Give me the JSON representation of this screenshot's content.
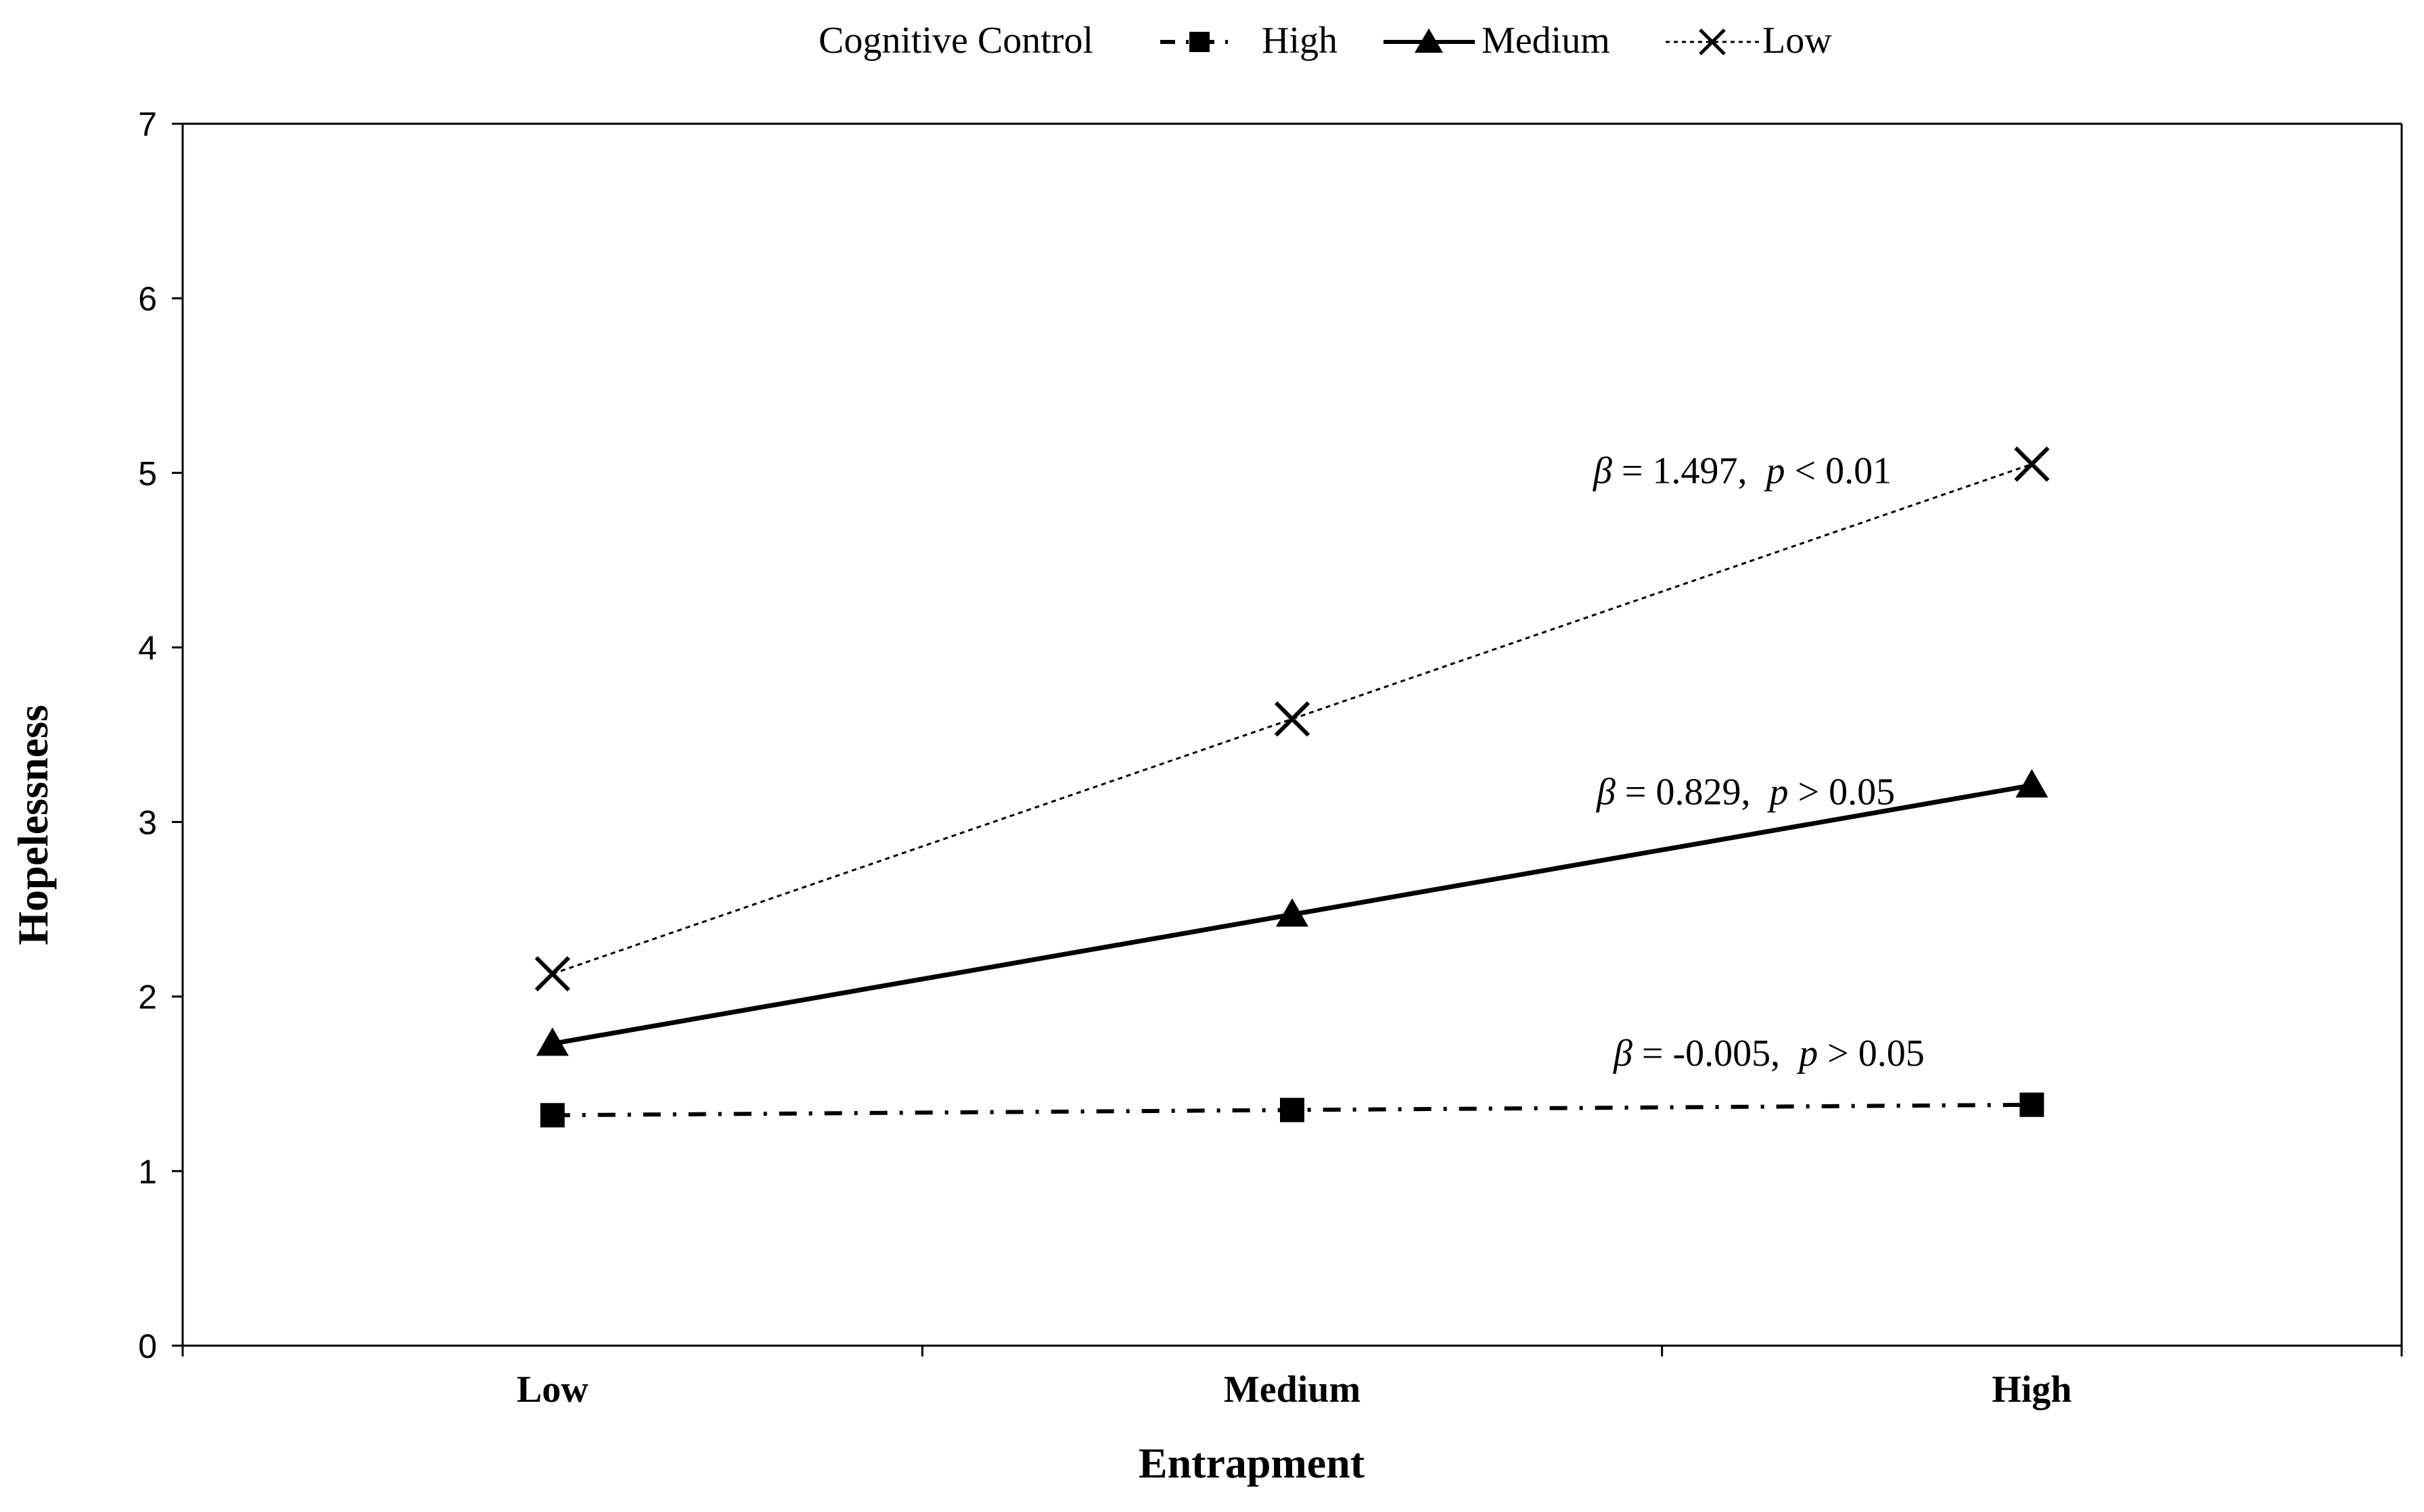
{
  "chart_data": {
    "type": "line",
    "title": "",
    "xlabel": "Entrapment",
    "ylabel": "Hopelessness",
    "categories": [
      "Low",
      "Medium",
      "High"
    ],
    "ylim": [
      0,
      7
    ],
    "yticks": [
      "0",
      "1",
      "2",
      "3",
      "4",
      "5",
      "6",
      "7"
    ],
    "grid": false,
    "legend": {
      "title": "Cognitive Control",
      "position": "top-center"
    },
    "series": [
      {
        "name": "High",
        "values": [
          1.32,
          1.35,
          1.38
        ],
        "marker": "square",
        "line_style": "dash-dot",
        "color": "#000000",
        "annotation": {
          "beta": "β",
          "coef": " = -0.005,  ",
          "p": "p",
          "pval": " > 0.05"
        }
      },
      {
        "name": "Medium",
        "values": [
          1.73,
          2.47,
          3.21
        ],
        "marker": "triangle",
        "line_style": "solid",
        "color": "#000000",
        "annotation": {
          "beta": "β",
          "coef": " = 0.829,  ",
          "p": "p",
          "pval": " > 0.05"
        }
      },
      {
        "name": "Low",
        "values": [
          2.13,
          3.59,
          5.05
        ],
        "marker": "x",
        "line_style": "dotted",
        "color": "#000000",
        "annotation": {
          "beta": "β",
          "coef": " = 1.497,  ",
          "p": "p",
          "pval": " < 0.01"
        }
      }
    ]
  }
}
